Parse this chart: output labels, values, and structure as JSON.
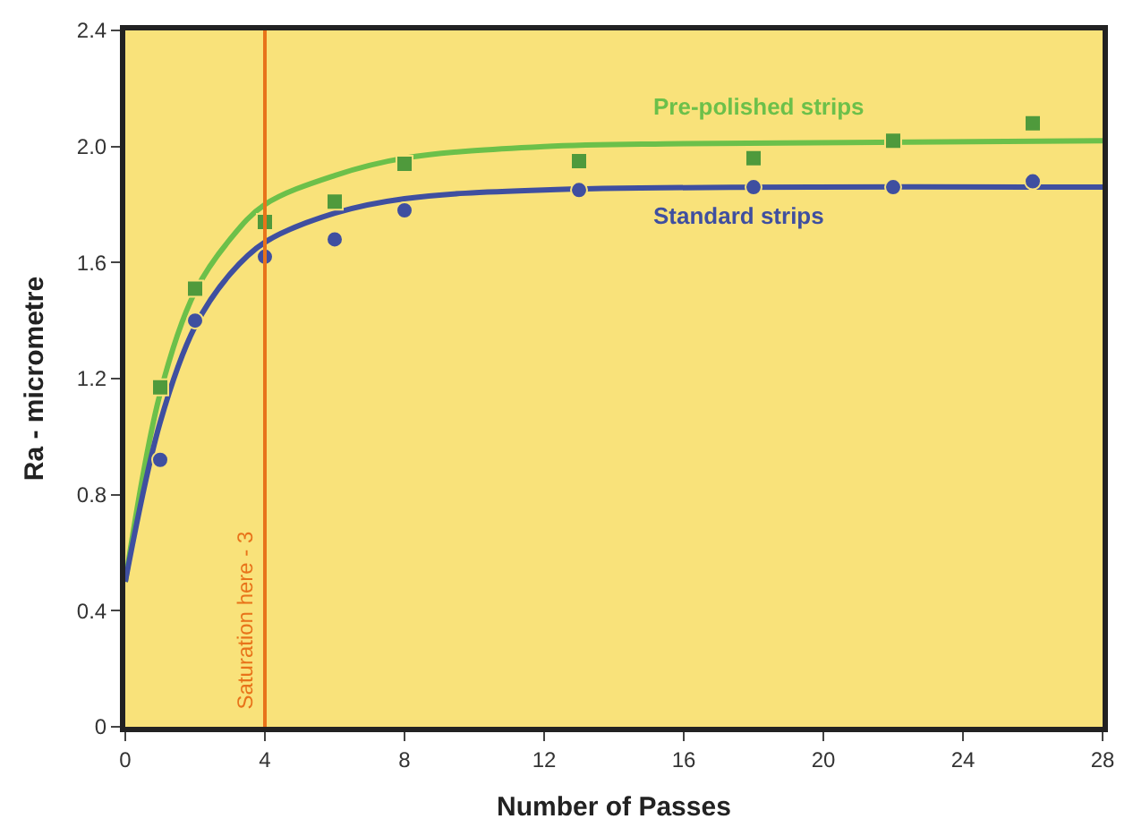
{
  "chart_data": {
    "type": "scatter",
    "xlabel": "Number of Passes",
    "ylabel": "Ra - micrometre",
    "xlim": [
      0,
      28
    ],
    "xticks": [
      0,
      4,
      8,
      12,
      16,
      20,
      24,
      28
    ],
    "ylim": [
      0,
      2.4
    ],
    "yticks": [
      0,
      0.4,
      0.8,
      1.2,
      1.6,
      {
        "value": 2.0,
        "label": "2.0"
      },
      2.4
    ],
    "grid": false,
    "series": [
      {
        "color": "#4f9a3c",
        "marker": "square",
        "x": [
          1,
          2,
          4,
          6,
          8,
          13,
          18,
          22,
          26
        ],
        "values": [
          1.17,
          1.51,
          1.74,
          1.81,
          1.94,
          1.95,
          1.96,
          2.02,
          2.08
        ]
      },
      {
        "color": "#3f4fa0",
        "marker": "circle",
        "x": [
          1,
          2,
          4,
          6,
          8,
          13,
          18,
          22,
          26
        ],
        "values": [
          0.92,
          1.4,
          1.62,
          1.68,
          1.78,
          1.85,
          1.86,
          1.86,
          1.88
        ]
      },
      {
        "type": "line",
        "name": "Pre-polished strips",
        "color": "#6cc04a",
        "x": [
          0,
          1,
          2,
          3,
          4,
          6,
          8,
          12,
          16,
          28
        ],
        "values": [
          0.5,
          1.15,
          1.5,
          1.68,
          1.8,
          1.9,
          1.96,
          2.0,
          2.01,
          2.02
        ]
      },
      {
        "type": "line",
        "name": "Standard strips",
        "color": "#3f4fa0",
        "x": [
          0,
          1,
          2,
          3,
          4,
          6,
          8,
          12,
          28
        ],
        "values": [
          0.5,
          1.05,
          1.38,
          1.56,
          1.67,
          1.77,
          1.82,
          1.85,
          1.86
        ]
      }
    ],
    "ref_lines": [
      {
        "axis": "x",
        "value": 4,
        "label": "Saturation here - 3",
        "color": "#e8731a"
      }
    ]
  }
}
